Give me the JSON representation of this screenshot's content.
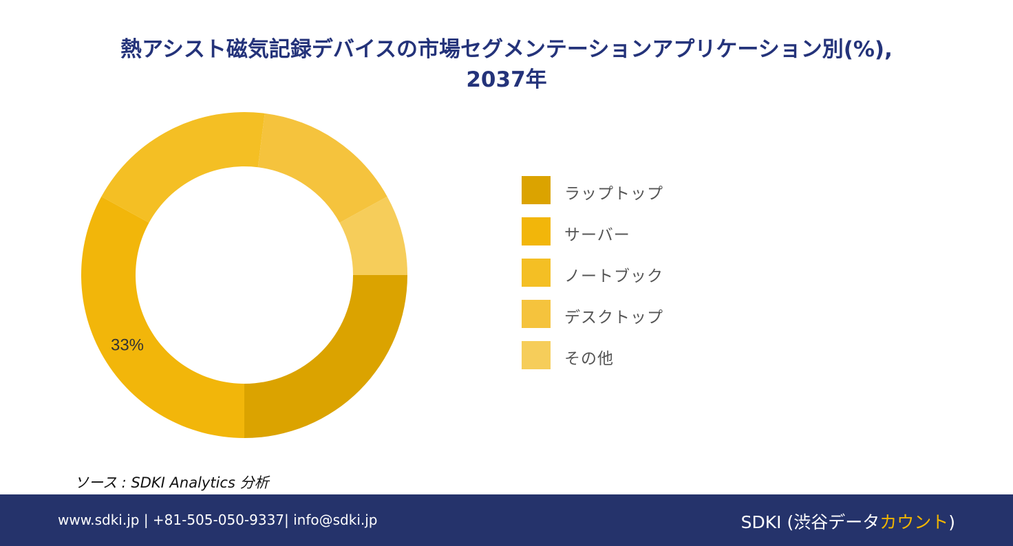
{
  "title": {
    "line1": "熱アシスト磁気記録デバイスの市場セグメンテーションアプリケーション別(%),",
    "line2": "2037年"
  },
  "chart_data": {
    "type": "pie",
    "donut": true,
    "start_angle_deg": 90,
    "direction": "clockwise",
    "categories": [
      "ラップトップ",
      "サーバー",
      "ノートブック",
      "デスクトップ",
      "その他"
    ],
    "values": [
      25,
      33,
      19,
      15,
      8
    ],
    "colors": [
      "#dba300",
      "#f2b60a",
      "#f4bf24",
      "#f5c33d",
      "#f6cd5a"
    ],
    "data_labels": [
      {
        "category": "サーバー",
        "text": "33%"
      }
    ],
    "legend_position": "right"
  },
  "source": {
    "prefix": "ソース",
    "text": ": SDKI Analytics 分析"
  },
  "footer": {
    "contact": "www.sdki.jp | +81-505-050-9337| info@sdki.jp",
    "brand_main": "SDKI (渋谷データ",
    "brand_accent": "カウント",
    "brand_close": ")"
  }
}
